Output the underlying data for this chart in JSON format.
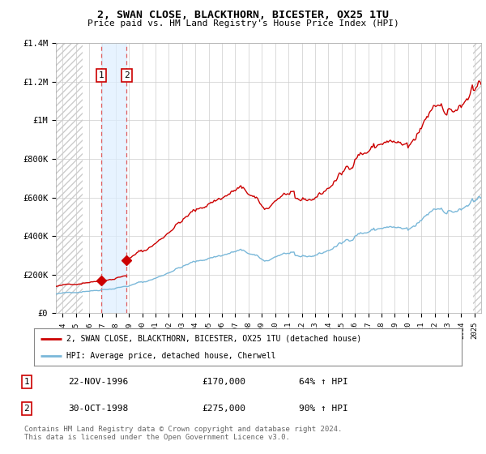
{
  "title": "2, SWAN CLOSE, BLACKTHORN, BICESTER, OX25 1TU",
  "subtitle": "Price paid vs. HM Land Registry's House Price Index (HPI)",
  "legend_line1": "2, SWAN CLOSE, BLACKTHORN, BICESTER, OX25 1TU (detached house)",
  "legend_line2": "HPI: Average price, detached house, Cherwell",
  "footer": "Contains HM Land Registry data © Crown copyright and database right 2024.\nThis data is licensed under the Open Government Licence v3.0.",
  "transactions": [
    {
      "num": 1,
      "date": "22-NOV-1996",
      "price": 170000,
      "x": 1996.896,
      "hpi_pct": "64% ↑ HPI"
    },
    {
      "num": 2,
      "date": "30-OCT-1998",
      "price": 275000,
      "x": 1998.829,
      "hpi_pct": "90% ↑ HPI"
    }
  ],
  "hpi_color": "#7ab8d9",
  "price_color": "#cc0000",
  "marker_color": "#cc0000",
  "ylim_max": 1400000,
  "xlim_start": 1993.5,
  "xlim_end": 2025.5,
  "yticks": [
    0,
    200000,
    400000,
    600000,
    800000,
    1000000,
    1200000,
    1400000
  ],
  "ytick_labels": [
    "£0",
    "£200K",
    "£400K",
    "£600K",
    "£800K",
    "£1M",
    "£1.2M",
    "£1.4M"
  ],
  "hatch_left_end": 1995.5,
  "hatch_right_start": 2024.92
}
